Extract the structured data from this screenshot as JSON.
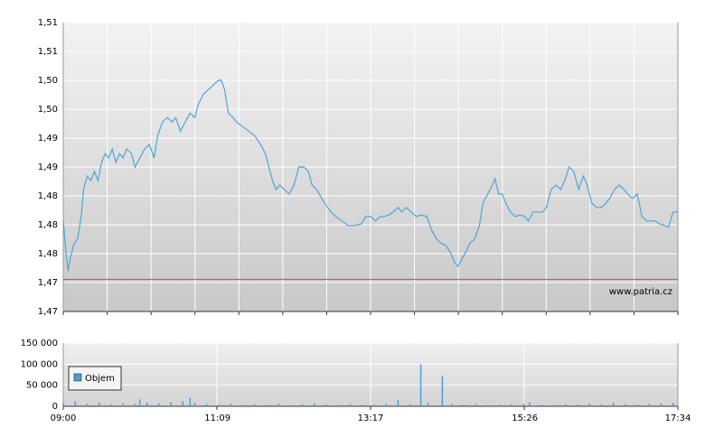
{
  "chart_data": [
    {
      "type": "line",
      "color": "#4ea6d6",
      "grid": true,
      "annotation": "www.patria.cz",
      "reference_line": {
        "value": 1.4715,
        "color": "#d9534f"
      },
      "xlim": [
        "09:00",
        "17:34"
      ],
      "ylim": [
        1.4665,
        1.5115
      ],
      "yticks": [
        {
          "value": 1.4665,
          "label": "1,47"
        },
        {
          "value": 1.471,
          "label": "1,47"
        },
        {
          "value": 1.4755,
          "label": "1,48"
        },
        {
          "value": 1.48,
          "label": "1,48"
        },
        {
          "value": 1.4845,
          "label": "1,48"
        },
        {
          "value": 1.489,
          "label": "1,49"
        },
        {
          "value": 1.4935,
          "label": "1,49"
        },
        {
          "value": 1.498,
          "label": "1,50"
        },
        {
          "value": 1.5025,
          "label": "1,50"
        },
        {
          "value": 1.507,
          "label": "1,51"
        },
        {
          "value": 1.5115,
          "label": "1,51"
        }
      ],
      "x": [
        "09:00",
        "09:02",
        "09:04",
        "09:06",
        "09:09",
        "09:12",
        "09:15",
        "09:17",
        "09:20",
        "09:23",
        "09:26",
        "09:29",
        "09:32",
        "09:35",
        "09:38",
        "09:41",
        "09:44",
        "09:47",
        "09:50",
        "09:53",
        "09:57",
        "10:00",
        "10:04",
        "10:08",
        "10:12",
        "10:16",
        "10:19",
        "10:23",
        "10:27",
        "10:31",
        "10:34",
        "10:38",
        "10:42",
        "10:46",
        "10:50",
        "10:53",
        "10:57",
        "11:01",
        "11:05",
        "11:09",
        "11:12",
        "11:15",
        "11:18",
        "11:22",
        "11:25",
        "11:30",
        "11:35",
        "11:40",
        "11:45",
        "11:49",
        "11:52",
        "11:55",
        "11:58",
        "12:01",
        "12:05",
        "12:09",
        "12:13",
        "12:17",
        "12:21",
        "12:25",
        "12:28",
        "12:32",
        "12:36",
        "12:41",
        "12:44",
        "12:48",
        "12:53",
        "12:58",
        "13:03",
        "13:09",
        "13:13",
        "13:17",
        "13:21",
        "13:25",
        "13:28",
        "13:32",
        "13:36",
        "13:40",
        "13:43",
        "13:47",
        "13:51",
        "13:55",
        "13:59",
        "14:04",
        "14:08",
        "14:12",
        "14:16",
        "14:20",
        "14:24",
        "14:27",
        "14:30",
        "14:34",
        "14:37",
        "14:40",
        "14:44",
        "14:48",
        "14:51",
        "14:55",
        "14:59",
        "15:01",
        "15:04",
        "15:07",
        "15:10",
        "15:14",
        "15:18",
        "15:22",
        "15:26",
        "15:29",
        "15:33",
        "15:37",
        "15:41",
        "15:44",
        "15:48",
        "15:52",
        "15:56",
        "16:00",
        "16:03",
        "16:07",
        "16:11",
        "16:15",
        "16:18",
        "16:22",
        "16:26",
        "16:30",
        "16:34",
        "16:37",
        "16:41",
        "16:45",
        "16:49",
        "16:52",
        "16:56",
        "17:00",
        "17:04",
        "17:08",
        "17:11",
        "17:15",
        "17:19",
        "17:23",
        "17:26",
        "17:30",
        "17:34"
      ],
      "values": [
        1.4806,
        1.4763,
        1.4728,
        1.4749,
        1.4771,
        1.4778,
        1.4813,
        1.4855,
        1.4876,
        1.4869,
        1.4883,
        1.4869,
        1.4897,
        1.4911,
        1.4904,
        1.4918,
        1.4897,
        1.4911,
        1.4904,
        1.4918,
        1.4911,
        1.489,
        1.4904,
        1.4918,
        1.4925,
        1.4904,
        1.4939,
        1.496,
        1.4967,
        1.496,
        1.4967,
        1.4946,
        1.496,
        1.4974,
        1.4967,
        1.4988,
        1.5003,
        1.501,
        1.5017,
        1.5024,
        1.5026,
        1.501,
        1.4974,
        1.4967,
        1.496,
        1.4953,
        1.4946,
        1.4939,
        1.4925,
        1.4911,
        1.489,
        1.4869,
        1.4855,
        1.4862,
        1.4855,
        1.4848,
        1.4862,
        1.489,
        1.489,
        1.4883,
        1.4862,
        1.4855,
        1.4841,
        1.4827,
        1.482,
        1.4813,
        1.4806,
        1.4799,
        1.4799,
        1.4801,
        1.4813,
        1.4813,
        1.4806,
        1.4813,
        1.4813,
        1.4815,
        1.482,
        1.4827,
        1.482,
        1.4827,
        1.482,
        1.4813,
        1.4815,
        1.4813,
        1.4792,
        1.4778,
        1.4771,
        1.4768,
        1.4756,
        1.4742,
        1.4735,
        1.4749,
        1.4759,
        1.4771,
        1.4778,
        1.4799,
        1.4834,
        1.4848,
        1.4862,
        1.4872,
        1.4848,
        1.4848,
        1.4834,
        1.482,
        1.4813,
        1.4815,
        1.4813,
        1.4806,
        1.482,
        1.482,
        1.482,
        1.4827,
        1.4855,
        1.4862,
        1.4855,
        1.4872,
        1.489,
        1.4883,
        1.4855,
        1.4876,
        1.4862,
        1.4834,
        1.4827,
        1.4827,
        1.4834,
        1.4841,
        1.4855,
        1.4862,
        1.4855,
        1.4848,
        1.4841,
        1.4848,
        1.4813,
        1.4806,
        1.4806,
        1.4806,
        1.4801,
        1.4799,
        1.4796,
        1.482,
        1.482
      ]
    },
    {
      "type": "bar",
      "grid": true,
      "xlim": [
        "09:00",
        "17:34"
      ],
      "xticks": [
        "09:00",
        "11:09",
        "13:17",
        "15:26",
        "17:34"
      ],
      "ylim": [
        0,
        150000
      ],
      "yticks": [
        0,
        {
          "value": 50000,
          "label": "50 000"
        },
        {
          "value": 100000,
          "label": "100 000"
        },
        {
          "value": 150000,
          "label": "150 000"
        }
      ],
      "x": [
        "09:00",
        "09:10",
        "09:20",
        "09:30",
        "09:40",
        "09:50",
        "10:00",
        "10:04",
        "10:10",
        "10:20",
        "10:30",
        "10:40",
        "10:46",
        "10:50",
        "11:00",
        "11:10",
        "11:20",
        "11:30",
        "11:40",
        "11:50",
        "12:00",
        "12:10",
        "12:20",
        "12:30",
        "12:40",
        "12:50",
        "13:00",
        "13:10",
        "13:20",
        "13:30",
        "13:40",
        "13:50",
        "13:59",
        "14:05",
        "14:17",
        "14:25",
        "14:35",
        "14:45",
        "14:55",
        "15:05",
        "15:15",
        "15:25",
        "15:30",
        "15:40",
        "15:50",
        "16:00",
        "16:10",
        "16:20",
        "16:30",
        "16:40",
        "16:50",
        "17:00",
        "17:10",
        "17:20",
        "17:30"
      ],
      "series": [
        {
          "name": "Objem",
          "color": "#4a9fd0",
          "values": [
            8000,
            12000,
            6000,
            9000,
            5000,
            7000,
            6000,
            16000,
            9000,
            7000,
            10000,
            12000,
            20000,
            8000,
            5000,
            4000,
            6000,
            3000,
            5000,
            4000,
            6000,
            3000,
            5000,
            7000,
            4000,
            3000,
            5000,
            4000,
            3000,
            6000,
            15000,
            5000,
            100000,
            8000,
            72000,
            6000,
            4000,
            5000,
            3000,
            4000,
            5000,
            6000,
            10000,
            4000,
            3000,
            5000,
            4000,
            6000,
            5000,
            9000,
            5000,
            4000,
            6000,
            7000,
            8000
          ]
        }
      ]
    }
  ]
}
